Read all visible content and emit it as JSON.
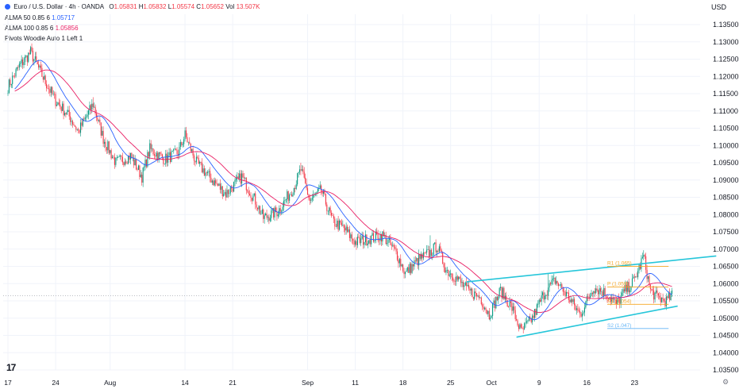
{
  "header": {
    "symbol": "Euro / U.S. Dollar",
    "sep1": "·",
    "interval": "4h",
    "sep2": "·",
    "source": "OANDA",
    "ohlc": [
      {
        "k": "O",
        "v": "1.05831"
      },
      {
        "k": "H",
        "v": "1.05832"
      },
      {
        "k": "L",
        "v": "1.05574"
      },
      {
        "k": "C",
        "v": "1.05652"
      }
    ],
    "vol_label": "Vol",
    "vol_value": "13.507K"
  },
  "indicators": [
    {
      "label": "ALMA 50 0.85 6",
      "value": "1.05717",
      "color": "#2962ff"
    },
    {
      "label": "ALMA 100 0.85 6",
      "value": "1.05856",
      "color": "#e91e63"
    },
    {
      "label": "Pivots Woodie Auto 1 Left 1",
      "value": "",
      "color": "#131722"
    }
  ],
  "currency": "USD",
  "logo": "17",
  "settings_icon": "gear-icon",
  "colors": {
    "up": "#089981",
    "down": "#f23645",
    "alma50": "#2962ff",
    "alma100": "#e91e63",
    "channel": "#26c6da",
    "pivot": "#f5a623"
  },
  "chart_data": {
    "type": "candlestick",
    "ylim": [
      1.035,
      1.138
    ],
    "y_ticks": [
      "1.13500",
      "1.13000",
      "1.12500",
      "1.12000",
      "1.11500",
      "1.11000",
      "1.10500",
      "1.10000",
      "1.09500",
      "1.09000",
      "1.08500",
      "1.08000",
      "1.07500",
      "1.07000",
      "1.06500",
      "1.06000",
      "1.05500",
      "1.05000",
      "1.04500",
      "1.04000",
      "1.03500"
    ],
    "x_labels": [
      {
        "t": "17",
        "i": 0
      },
      {
        "t": "24",
        "i": 42
      },
      {
        "t": "Aug",
        "i": 90
      },
      {
        "t": "14",
        "i": 156
      },
      {
        "t": "21",
        "i": 198
      },
      {
        "t": "Sep",
        "i": 264
      },
      {
        "t": "11",
        "i": 306
      },
      {
        "t": "18",
        "i": 348
      },
      {
        "t": "25",
        "i": 390
      },
      {
        "t": "Oct",
        "i": 426
      },
      {
        "t": "9",
        "i": 468
      },
      {
        "t": "16",
        "i": 510
      },
      {
        "t": "23",
        "i": 552
      }
    ],
    "n_bars": 586,
    "anchors": [
      [
        0,
        1.117
      ],
      [
        10,
        1.123
      ],
      [
        20,
        1.127
      ],
      [
        32,
        1.119
      ],
      [
        42,
        1.113
      ],
      [
        55,
        1.108
      ],
      [
        62,
        1.104
      ],
      [
        75,
        1.112
      ],
      [
        84,
        1.102
      ],
      [
        95,
        1.095
      ],
      [
        108,
        1.097
      ],
      [
        118,
        1.091
      ],
      [
        125,
        1.099
      ],
      [
        138,
        1.096
      ],
      [
        150,
        1.098
      ],
      [
        156,
        1.103
      ],
      [
        166,
        1.095
      ],
      [
        180,
        1.09
      ],
      [
        192,
        1.086
      ],
      [
        206,
        1.091
      ],
      [
        218,
        1.084
      ],
      [
        225,
        1.079
      ],
      [
        238,
        1.081
      ],
      [
        252,
        1.088
      ],
      [
        258,
        1.093
      ],
      [
        266,
        1.084
      ],
      [
        276,
        1.087
      ],
      [
        286,
        1.078
      ],
      [
        296,
        1.076
      ],
      [
        306,
        1.072
      ],
      [
        318,
        1.073
      ],
      [
        330,
        1.074
      ],
      [
        342,
        1.069
      ],
      [
        350,
        1.063
      ],
      [
        362,
        1.067
      ],
      [
        372,
        1.069
      ],
      [
        378,
        1.071
      ],
      [
        386,
        1.064
      ],
      [
        394,
        1.062
      ],
      [
        405,
        1.058
      ],
      [
        416,
        1.056
      ],
      [
        424,
        1.051
      ],
      [
        434,
        1.058
      ],
      [
        444,
        1.053
      ],
      [
        452,
        1.046
      ],
      [
        462,
        1.05
      ],
      [
        472,
        1.057
      ],
      [
        482,
        1.061
      ],
      [
        494,
        1.056
      ],
      [
        504,
        1.051
      ],
      [
        516,
        1.059
      ],
      [
        528,
        1.057
      ],
      [
        536,
        1.054
      ],
      [
        544,
        1.058
      ],
      [
        552,
        1.061
      ],
      [
        560,
        1.068
      ],
      [
        566,
        1.058
      ],
      [
        572,
        1.056
      ],
      [
        580,
        1.055
      ],
      [
        585,
        1.0565
      ]
    ],
    "spikes": [
      [
        20,
        1.128
      ],
      [
        75,
        1.114
      ],
      [
        125,
        1.101
      ],
      [
        156,
        1.105
      ],
      [
        258,
        1.095
      ],
      [
        372,
        1.074
      ],
      [
        476,
        1.063
      ],
      [
        560,
        1.069
      ]
    ],
    "seed": 7,
    "current_price": 1.0565,
    "channel": {
      "upper": [
        [
          404,
          1.0605
        ],
        [
          624,
          1.068
        ]
      ],
      "lower": [
        [
          448,
          1.0445
        ],
        [
          590,
          1.0535
        ]
      ]
    },
    "pivots": [
      {
        "label": "R1 (1.065)",
        "value": 1.065,
        "from": 528,
        "to": 582,
        "color": "#f5a623"
      },
      {
        "label": "P (1.059)",
        "value": 1.059,
        "from": 528,
        "to": 582,
        "color": "#f5a623"
      },
      {
        "label": "S1 (1.054)",
        "value": 1.054,
        "from": 528,
        "to": 582,
        "color": "#f5a623"
      },
      {
        "label": "S2 (1.047)",
        "value": 1.047,
        "from": 528,
        "to": 582,
        "color": "#64b5f6"
      }
    ]
  }
}
